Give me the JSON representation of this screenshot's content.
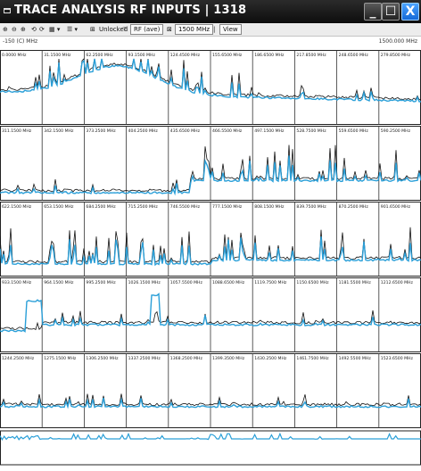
{
  "window": {
    "title": "TRACE ANALYSIS RF INPUTS  |  1318",
    "minimize_label": "_",
    "maximize_label": "☐",
    "close_label": "X"
  },
  "toolbar": {
    "items": [
      {
        "label": "⊕"
      },
      {
        "label": "⊖"
      },
      {
        "label": "⊕"
      },
      {
        "label": "⟲"
      },
      {
        "label": "⟳"
      },
      {
        "label": "▦ ▾"
      },
      {
        "label": "☰ ▾"
      }
    ],
    "unlocked_label": "Unlocked",
    "rf_label": "RF (ave)",
    "span_label": "1500 MHz",
    "view_label": "View"
  },
  "info": {
    "left": "-150 (C) MHz",
    "right": "1500.000 MHz"
  },
  "rows": [
    {
      "labels": [
        "0.0000 MHz",
        "31.1500 MHz",
        "62.2500 MHz",
        "93.1500 MHz",
        "124.4500 MHz",
        "155.6500 MHz",
        "186.6500 MHz",
        "217.8500 MHz",
        "248.6500 MHz",
        "279.8500 MHz"
      ]
    },
    {
      "labels": [
        "311.1500 MHz",
        "342.1500 MHz",
        "373.2500 MHz",
        "404.2500 MHz",
        "435.6500 MHz",
        "466.5500 MHz",
        "497.1500 MHz",
        "528.7500 MHz",
        "559.6500 MHz",
        "590.2500 MHz"
      ]
    },
    {
      "labels": [
        "622.1500 MHz",
        "653.1500 MHz",
        "684.2500 MHz",
        "715.2500 MHz",
        "746.5500 MHz",
        "777.1500 MHz",
        "808.1500 MHz",
        "839.7500 MHz",
        "870.2500 MHz",
        "901.6500 MHz"
      ]
    },
    {
      "labels": [
        "933.1500 MHz",
        "964.1500 MHz",
        "995.2500 MHz",
        "1026.1500 MHz",
        "1057.5500 MHz",
        "1088.6500 MHz",
        "1119.7500 MHz",
        "1150.6500 MHz",
        "1181.5500 MHz",
        "1212.6500 MHz"
      ]
    },
    {
      "labels": [
        "1244.2500 MHz",
        "1275.1500 MHz",
        "1306.2500 MHz",
        "1337.2500 MHz",
        "1368.2500 MHz",
        "1399.3500 MHz",
        "1430.2500 MHz",
        "1461.7500 MHz",
        "1492.5500 MHz",
        "1523.6500 MHz"
      ]
    }
  ],
  "colors": {
    "trace_current": "#111111",
    "trace_average": "#2a9fd8",
    "titlebar": "#1a1a1a",
    "close_button": "#1e7fe0"
  }
}
